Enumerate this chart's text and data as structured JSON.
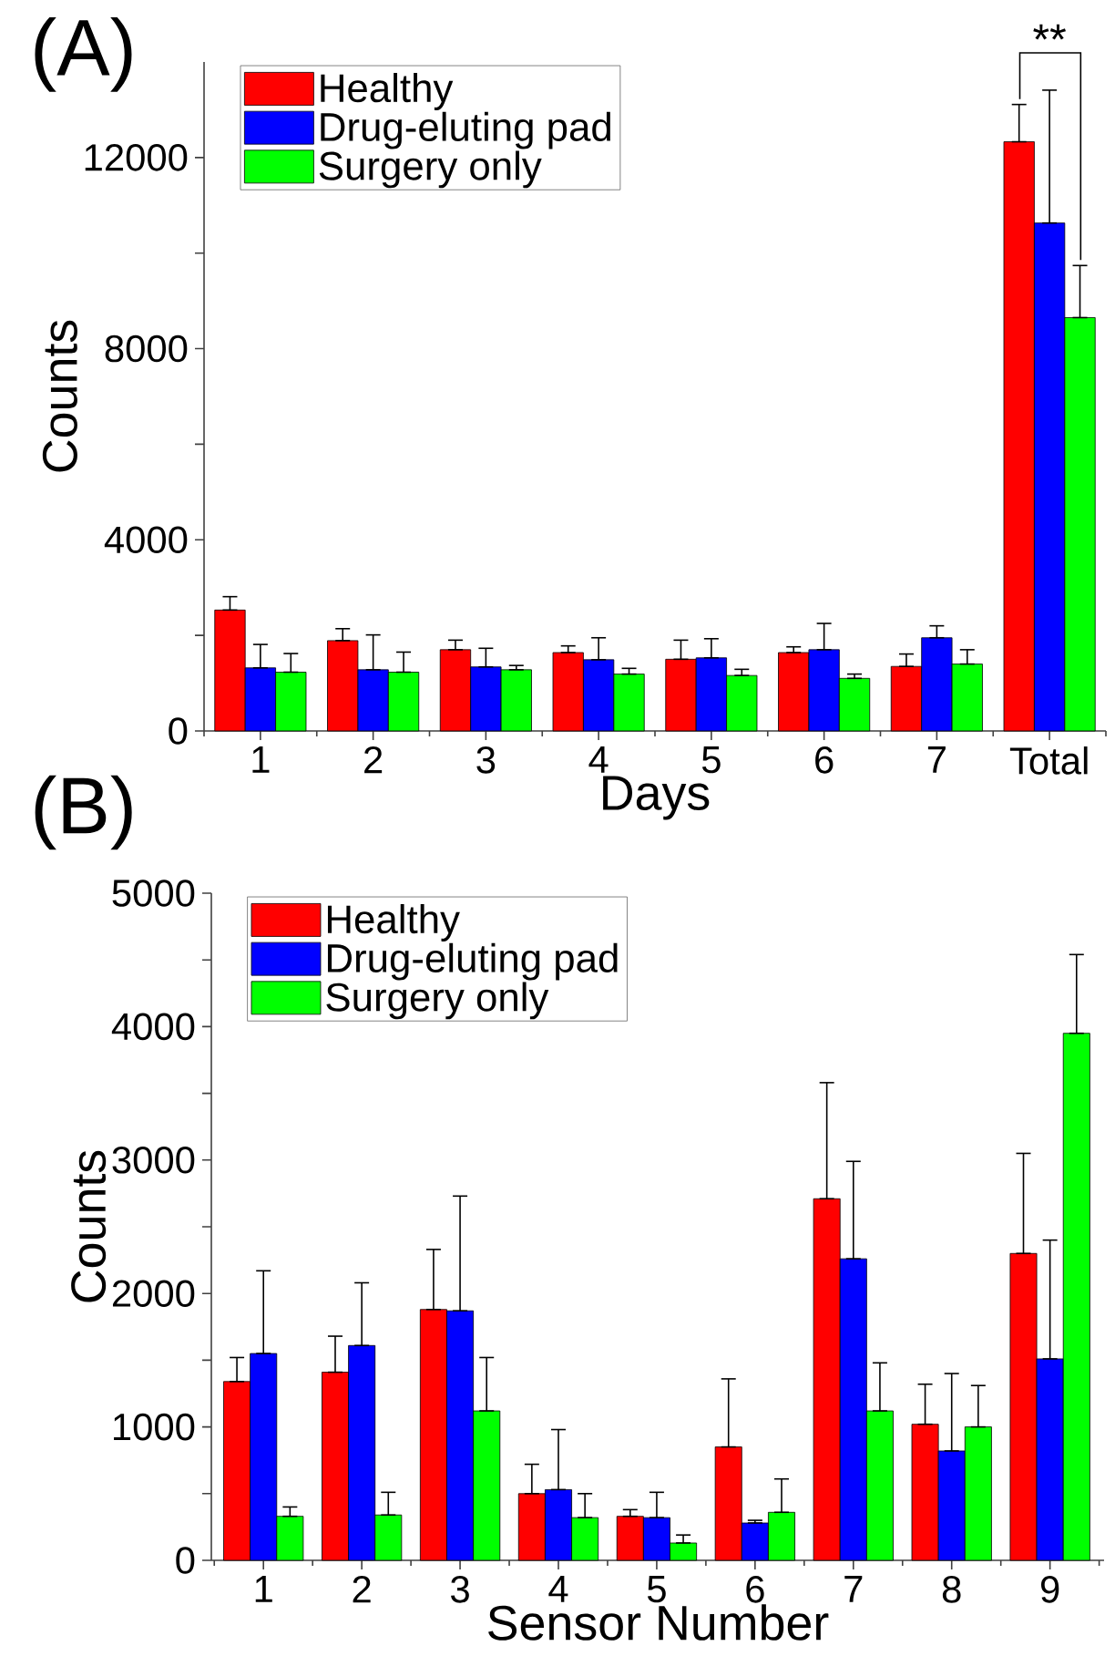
{
  "chart_data": [
    {
      "type": "bar",
      "title": "(A)",
      "xlabel": "Days",
      "ylabel": "Counts",
      "categories": [
        "1",
        "2",
        "3",
        "4",
        "5",
        "6",
        "7",
        "Total"
      ],
      "series": [
        {
          "name": "Healthy",
          "color": "#ff0000",
          "values": [
            2530,
            1890,
            1700,
            1640,
            1500,
            1640,
            1350,
            12330
          ],
          "errors": [
            [
              2530,
              2810
            ],
            [
              1890,
              2140
            ],
            [
              1700,
              1900
            ],
            [
              1640,
              1780
            ],
            [
              1500,
              1900
            ],
            [
              1640,
              1760
            ],
            [
              1350,
              1610
            ],
            [
              12330,
              13110
            ]
          ]
        },
        {
          "name": "Drug-eluting pad",
          "color": "#0000ff",
          "values": [
            1320,
            1280,
            1340,
            1490,
            1530,
            1700,
            1950,
            10630
          ],
          "errors": [
            [
              1320,
              1810
            ],
            [
              1280,
              2010
            ],
            [
              1340,
              1730
            ],
            [
              1490,
              1950
            ],
            [
              1530,
              1930
            ],
            [
              1700,
              2250
            ],
            [
              1950,
              2200
            ],
            [
              10630,
              13410
            ]
          ]
        },
        {
          "name": "Surgery only",
          "color": "#00ff00",
          "values": [
            1230,
            1230,
            1280,
            1190,
            1160,
            1100,
            1400,
            8650
          ],
          "errors": [
            [
              1230,
              1620
            ],
            [
              1230,
              1650
            ],
            [
              1280,
              1370
            ],
            [
              1190,
              1310
            ],
            [
              1160,
              1290
            ],
            [
              1100,
              1190
            ],
            [
              1400,
              1700
            ],
            [
              8650,
              9740
            ]
          ]
        }
      ],
      "ylim": [
        0,
        14000
      ],
      "yticks": [
        0,
        {
          "value": 2000,
          "label": null
        },
        4000,
        {
          "value": 6000,
          "label": null
        },
        8000,
        {
          "value": 10000,
          "label": null
        },
        12000
      ],
      "legend": "top left",
      "annotations": [
        "**"
      ]
    },
    {
      "type": "bar",
      "title": "(B)",
      "xlabel": "Sensor Number",
      "ylabel": "Counts",
      "categories": [
        "1",
        "2",
        "3",
        "4",
        "5",
        "6",
        "7",
        "8",
        "9"
      ],
      "series": [
        {
          "name": "Healthy",
          "color": "#ff0000",
          "values": [
            1340,
            1410,
            1880,
            500,
            330,
            850,
            2710,
            1020,
            2300
          ],
          "errors": [
            [
              1340,
              1520
            ],
            [
              1410,
              1680
            ],
            [
              1880,
              2330
            ],
            [
              500,
              720
            ],
            [
              330,
              380
            ],
            [
              850,
              1360
            ],
            [
              2710,
              3580
            ],
            [
              1020,
              1320
            ],
            [
              2300,
              3050
            ]
          ]
        },
        {
          "name": "Drug-eluting pad",
          "color": "#0000ff",
          "values": [
            1550,
            1610,
            1870,
            530,
            320,
            280,
            2260,
            820,
            1510
          ],
          "errors": [
            [
              1550,
              2170
            ],
            [
              1610,
              2080
            ],
            [
              1870,
              2730
            ],
            [
              530,
              980
            ],
            [
              320,
              510
            ],
            [
              280,
              300
            ],
            [
              2260,
              2990
            ],
            [
              820,
              1400
            ],
            [
              1510,
              2400
            ]
          ]
        },
        {
          "name": "Surgery only",
          "color": "#00ff00",
          "values": [
            330,
            340,
            1120,
            320,
            130,
            360,
            1120,
            1000,
            3950
          ],
          "errors": [
            [
              330,
              400
            ],
            [
              340,
              510
            ],
            [
              1120,
              1520
            ],
            [
              320,
              500
            ],
            [
              130,
              190
            ],
            [
              360,
              610
            ],
            [
              1120,
              1480
            ],
            [
              1000,
              1310
            ],
            [
              3950,
              4540
            ]
          ]
        }
      ],
      "ylim": [
        0,
        5000
      ],
      "yticks": [
        0,
        {
          "value": 500,
          "label": null
        },
        1000,
        {
          "value": 1500,
          "label": null
        },
        2000,
        {
          "value": 2500,
          "label": null
        },
        3000,
        {
          "value": 3500,
          "label": null
        },
        4000,
        {
          "value": 4500,
          "label": null
        },
        5000
      ],
      "legend": "top left"
    }
  ]
}
